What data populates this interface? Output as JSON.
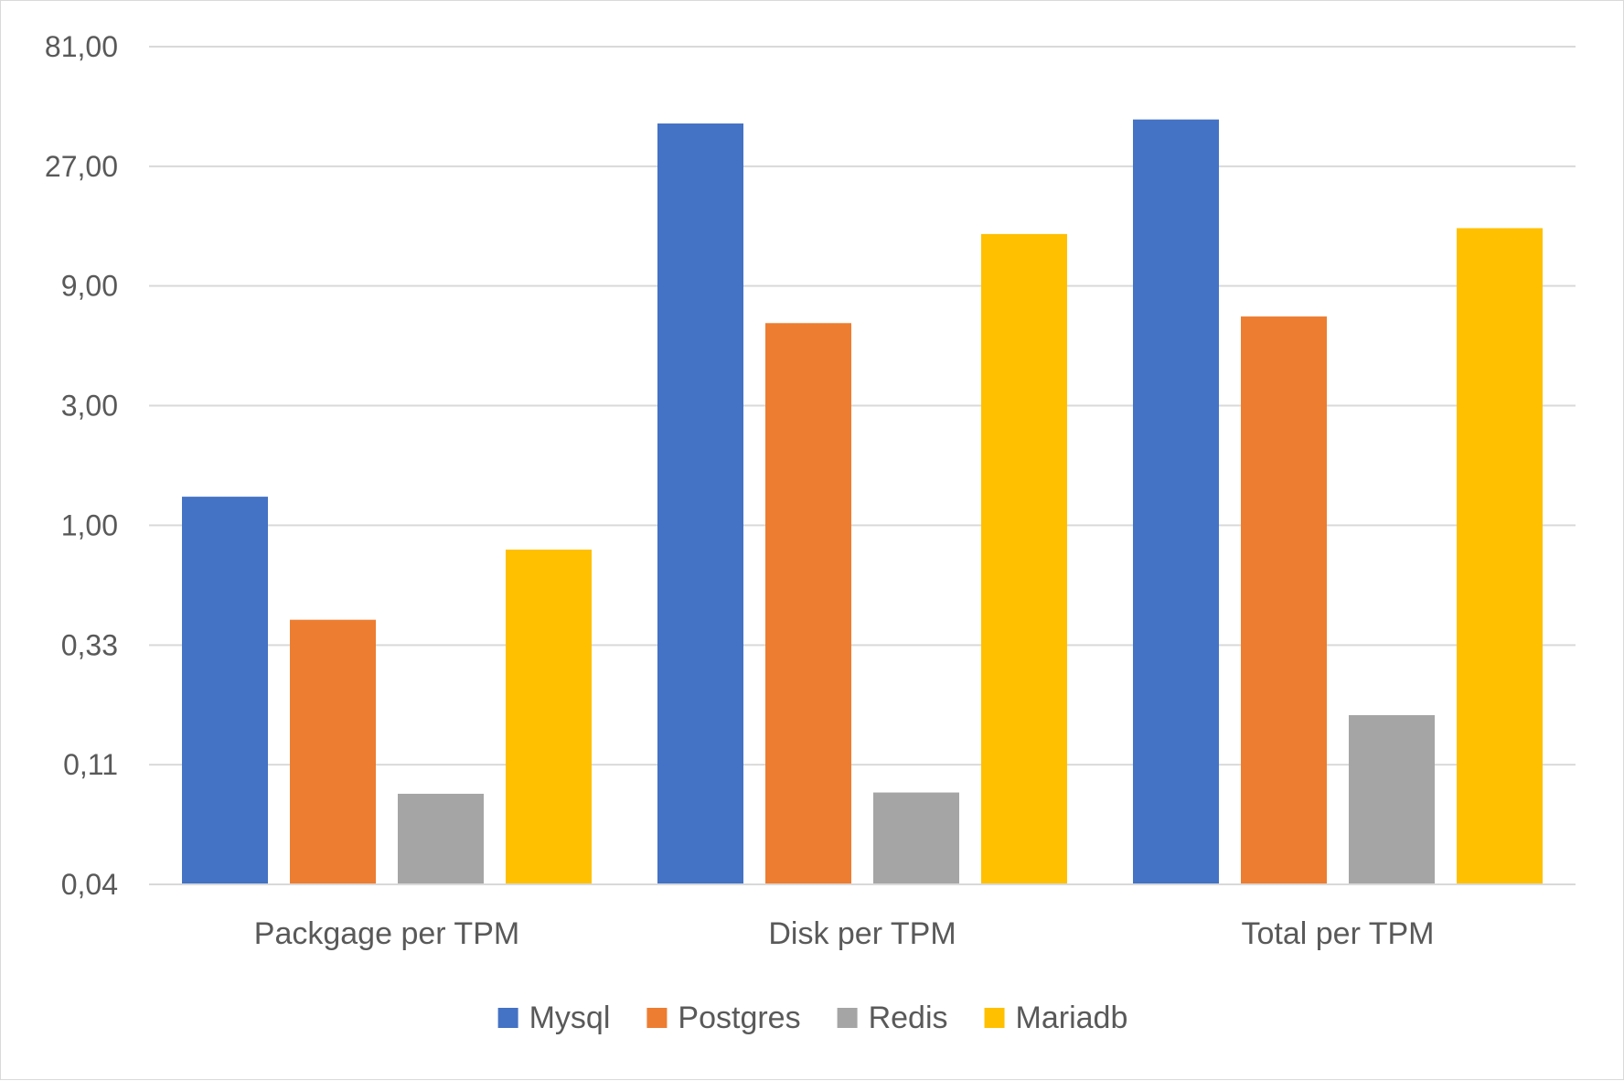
{
  "chart_data": {
    "type": "bar",
    "title": "",
    "xlabel": "",
    "ylabel": "",
    "yscale": "log3",
    "ylim": [
      0.037,
      81
    ],
    "yticks": [
      {
        "value": 0.037,
        "label": "0,04"
      },
      {
        "value": 0.111,
        "label": "0,11"
      },
      {
        "value": 0.333,
        "label": "0,33"
      },
      {
        "value": 1,
        "label": "1,00"
      },
      {
        "value": 3,
        "label": "3,00"
      },
      {
        "value": 9,
        "label": "9,00"
      },
      {
        "value": 27,
        "label": "27,00"
      },
      {
        "value": 81,
        "label": "81,00"
      }
    ],
    "grid": true,
    "legend_position": "bottom",
    "categories": [
      "Packgage per TPM",
      "Disk per TPM",
      "Total per TPM"
    ],
    "series": [
      {
        "name": "Mysql",
        "color": "#4472C4",
        "values": [
          1.3,
          40.0,
          41.5
        ]
      },
      {
        "name": "Postgres",
        "color": "#ED7D31",
        "values": [
          0.42,
          6.4,
          6.8
        ]
      },
      {
        "name": "Redis",
        "color": "#A5A5A5",
        "values": [
          0.085,
          0.086,
          0.175
        ]
      },
      {
        "name": "Mariadb",
        "color": "#FFC000",
        "values": [
          0.8,
          14.5,
          15.3
        ]
      }
    ]
  }
}
